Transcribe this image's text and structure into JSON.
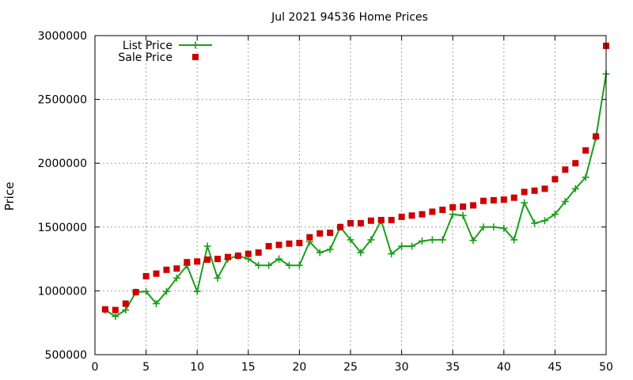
{
  "chart_data": {
    "type": "line",
    "title": "Jul 2021 94536 Home Prices",
    "xlabel": "",
    "ylabel": "Price",
    "xlim": [
      0,
      50
    ],
    "ylim": [
      500000,
      3000000
    ],
    "xticks": [
      0,
      5,
      10,
      15,
      20,
      25,
      30,
      35,
      40,
      45,
      50
    ],
    "yticks": [
      500000,
      1000000,
      1500000,
      2000000,
      2500000,
      3000000
    ],
    "grid": true,
    "legend_position": "top-left",
    "x": [
      1,
      2,
      3,
      4,
      5,
      6,
      7,
      8,
      9,
      10,
      11,
      12,
      13,
      14,
      15,
      16,
      17,
      18,
      19,
      20,
      21,
      22,
      23,
      24,
      25,
      26,
      27,
      28,
      29,
      30,
      31,
      32,
      33,
      34,
      35,
      36,
      37,
      38,
      39,
      40,
      41,
      42,
      43,
      44,
      45,
      46,
      47,
      48,
      49,
      50
    ],
    "series": [
      {
        "name": "List Price",
        "style": "linespoints",
        "color": "#1a9e1a",
        "values": [
          850000,
          800000,
          850000,
          990000,
          995000,
          900000,
          995000,
          1100000,
          1200000,
          995000,
          1350000,
          1100000,
          1250000,
          1275000,
          1250000,
          1200000,
          1200000,
          1250000,
          1200000,
          1200000,
          1385000,
          1300000,
          1325000,
          1500000,
          1400000,
          1300000,
          1400000,
          1550000,
          1290000,
          1350000,
          1350000,
          1390000,
          1400000,
          1400000,
          1600000,
          1590000,
          1395000,
          1500000,
          1500000,
          1490000,
          1400000,
          1690000,
          1530000,
          1550000,
          1600000,
          1700000,
          1800000,
          1890000,
          2200000,
          2700000
        ]
      },
      {
        "name": "Sale Price",
        "style": "points",
        "color": "#cc0000",
        "values": [
          855000,
          850000,
          900000,
          990000,
          1115000,
          1135000,
          1165000,
          1175000,
          1225000,
          1230000,
          1245000,
          1250000,
          1265000,
          1275000,
          1290000,
          1300000,
          1350000,
          1360000,
          1370000,
          1375000,
          1420000,
          1450000,
          1455000,
          1500000,
          1530000,
          1530000,
          1550000,
          1555000,
          1555000,
          1580000,
          1590000,
          1600000,
          1620000,
          1635000,
          1655000,
          1660000,
          1670000,
          1705000,
          1710000,
          1715000,
          1730000,
          1775000,
          1785000,
          1800000,
          1875000,
          1950000,
          2000000,
          2100000,
          2210000,
          2920000
        ]
      }
    ]
  }
}
